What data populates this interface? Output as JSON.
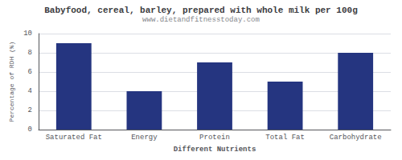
{
  "chart_data": {
    "type": "bar",
    "title": "Babyfood, cereal, barley, prepared with whole milk per 100g",
    "subtitle": "www.dietandfitnesstoday.com",
    "categories": [
      "Saturated Fat",
      "Energy",
      "Protein",
      "Total Fat",
      "Carbohydrate"
    ],
    "values": [
      9.0,
      4.0,
      7.0,
      5.0,
      8.0
    ],
    "color": "#253580",
    "xlabel": "Different Nutrients",
    "ylabel": "Percentage of RDH (%)",
    "ylim": [
      0,
      10
    ],
    "yticks": [
      0,
      2,
      4,
      6,
      8,
      10
    ],
    "grid": true
  }
}
